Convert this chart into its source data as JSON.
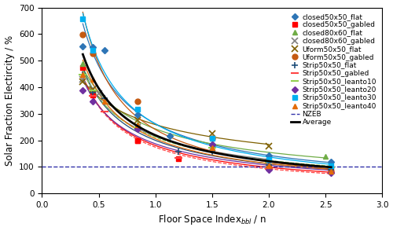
{
  "xlabel": "Floor Space Index$_{bbl}$ / n",
  "ylabel": "Solar Fraction Electircity / %",
  "xlim": [
    0,
    3
  ],
  "ylim": [
    0,
    700
  ],
  "yticks": [
    0,
    100,
    200,
    300,
    400,
    500,
    600,
    700
  ],
  "xticks": [
    0,
    0.5,
    1.0,
    1.5,
    2.0,
    2.5,
    3.0
  ],
  "nzeb_y": 100,
  "series": [
    {
      "label": "closed50x50_flat",
      "linecolor": "#2e75b6",
      "markercolor": "#2e75b6",
      "marker": "D",
      "linestyle": "-",
      "x": [
        0.36,
        0.45,
        0.55,
        0.84,
        1.13,
        1.5,
        2.0,
        2.55
      ],
      "y": [
        555,
        550,
        540,
        295,
        215,
        185,
        143,
        118
      ]
    },
    {
      "label": "closed50x50_gabled",
      "linecolor": "#ff0000",
      "markercolor": "#ff0000",
      "marker": "s",
      "linestyle": "-",
      "x": [
        0.36,
        0.45,
        0.84,
        1.2,
        0.84,
        2.55
      ],
      "y": [
        475,
        370,
        200,
        130,
        200,
        90
      ]
    },
    {
      "label": "closed80x60_flat",
      "linecolor": "#70ad47",
      "markercolor": "#70ad47",
      "marker": "^",
      "linestyle": "-",
      "x": [
        0.36,
        0.84,
        1.5,
        2.5
      ],
      "y": [
        490,
        260,
        180,
        140
      ]
    },
    {
      "label": "closed80x60_gabled",
      "linecolor": "#808080",
      "markercolor": "#808080",
      "marker": "x",
      "linestyle": "-",
      "x": [
        0.36,
        0.45,
        0.5,
        0.84,
        1.5,
        2.0
      ],
      "y": [
        430,
        395,
        375,
        248,
        172,
        118
      ]
    },
    {
      "label": "Uform50x50_flat",
      "linecolor": "#7f6000",
      "markercolor": "#7f6000",
      "marker": "x",
      "linestyle": "-",
      "x": [
        0.36,
        0.45,
        0.84,
        1.5,
        2.0
      ],
      "y": [
        420,
        390,
        275,
        225,
        178
      ]
    },
    {
      "label": "Uform50x50_gabled",
      "linecolor": "#c55a11",
      "markercolor": "#c55a11",
      "marker": "o",
      "linestyle": "-",
      "x": [
        0.36,
        0.45,
        0.84,
        1.5,
        2.0,
        2.55
      ],
      "y": [
        598,
        528,
        348,
        208,
        98,
        83
      ]
    },
    {
      "label": "Strip50x50_flat",
      "linecolor": "#1f4e79",
      "markercolor": "#1f4e79",
      "marker": "+",
      "linestyle": "-",
      "x": [
        0.36,
        0.45,
        0.55,
        0.84,
        1.2,
        1.5,
        2.0,
        2.55
      ],
      "y": [
        448,
        378,
        358,
        243,
        158,
        158,
        108,
        88
      ]
    },
    {
      "label": "Strip50x50_gabled",
      "linecolor": "#ff4444",
      "markercolor": "#ff4444",
      "marker": "_",
      "linestyle": "--",
      "x": [
        0.45,
        0.55,
        1.2,
        2.0,
        2.55
      ],
      "y": [
        368,
        308,
        133,
        93,
        78
      ]
    },
    {
      "label": "Strip50x50_leanto10",
      "linecolor": "#92d050",
      "markercolor": "#92d050",
      "marker": "_",
      "linestyle": "--",
      "x": [
        0.36,
        0.45,
        0.84,
        1.5,
        2.0,
        2.55
      ],
      "y": [
        448,
        388,
        248,
        173,
        118,
        98
      ]
    },
    {
      "label": "Strip50x50_leanto20",
      "linecolor": "#7030a0",
      "markercolor": "#7030a0",
      "marker": "D",
      "linestyle": "-",
      "x": [
        0.36,
        0.45,
        0.84,
        1.5,
        2.0,
        2.55
      ],
      "y": [
        388,
        348,
        243,
        183,
        88,
        78
      ]
    },
    {
      "label": "Strip50x50_leanto30",
      "linecolor": "#00b0f0",
      "markercolor": "#00b0f0",
      "marker": "s",
      "linestyle": "-",
      "x": [
        0.36,
        0.45,
        0.84,
        1.5,
        2.0,
        2.55
      ],
      "y": [
        658,
        538,
        318,
        208,
        128,
        103
      ]
    },
    {
      "label": "Strip50x50_leanto40",
      "linecolor": "#e36c09",
      "markercolor": "#e36c09",
      "marker": "^",
      "linestyle": "-",
      "x": [
        0.36,
        0.45,
        0.55,
        0.84,
        1.5,
        2.0,
        2.55
      ],
      "y": [
        448,
        428,
        348,
        258,
        173,
        103,
        83
      ]
    }
  ],
  "average_x": [
    0.36,
    0.45,
    0.55,
    0.84,
    1.13,
    1.5,
    2.0,
    2.55
  ],
  "average_y": [
    483,
    428,
    388,
    263,
    195,
    178,
    113,
    93
  ],
  "legend_fontsize": 6.5,
  "axis_fontsize": 8.5
}
